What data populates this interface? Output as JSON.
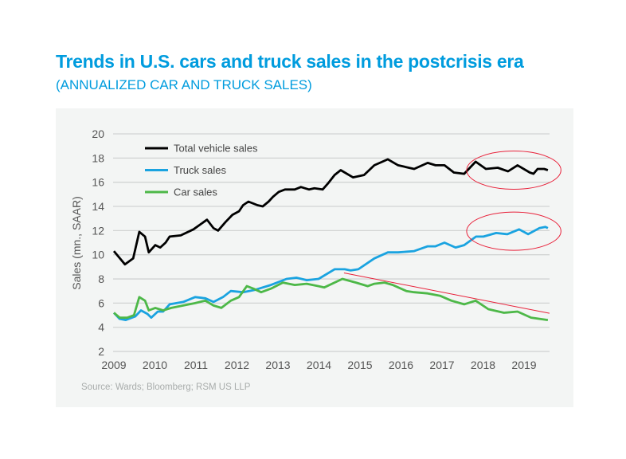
{
  "title": "Trends in U.S. cars and truck sales in the postcrisis era",
  "subtitle": "(ANNUALIZED CAR AND TRUCK SALES)",
  "source": "Source: Wards; Bloomberg; RSM US LLP",
  "chart_data": {
    "type": "line",
    "title": "Trends in U.S. cars and truck sales in the postcrisis era",
    "xlabel": "",
    "ylabel": "Sales (mn., SAAR)",
    "xlim": [
      2009,
      2019.7
    ],
    "ylim": [
      2,
      20
    ],
    "yticks": [
      "2",
      "4",
      "6",
      "8",
      "10",
      "12",
      "14",
      "16",
      "18",
      "20"
    ],
    "xticks": [
      "2009",
      "2010",
      "2011",
      "2012",
      "2013",
      "2014",
      "2015",
      "2016",
      "2017",
      "2018",
      "2019"
    ],
    "grid": "horizontal",
    "legend_position": "top-left",
    "series": [
      {
        "name": "Total vehicle sales",
        "color": "#000000",
        "points": [
          [
            2009.0,
            10.3
          ],
          [
            2009.27,
            9.2
          ],
          [
            2009.47,
            9.7
          ],
          [
            2009.62,
            11.9
          ],
          [
            2009.76,
            11.5
          ],
          [
            2009.85,
            10.2
          ],
          [
            2010.01,
            10.8
          ],
          [
            2010.13,
            10.6
          ],
          [
            2010.26,
            11.0
          ],
          [
            2010.36,
            11.5
          ],
          [
            2010.63,
            11.6
          ],
          [
            2010.94,
            12.1
          ],
          [
            2011.27,
            12.9
          ],
          [
            2011.43,
            12.2
          ],
          [
            2011.54,
            12.0
          ],
          [
            2011.72,
            12.7
          ],
          [
            2011.89,
            13.3
          ],
          [
            2012.05,
            13.6
          ],
          [
            2012.15,
            14.1
          ],
          [
            2012.28,
            14.4
          ],
          [
            2012.5,
            14.1
          ],
          [
            2012.63,
            14.0
          ],
          [
            2012.77,
            14.4
          ],
          [
            2012.88,
            14.8
          ],
          [
            2013.02,
            15.2
          ],
          [
            2013.17,
            15.4
          ],
          [
            2013.41,
            15.4
          ],
          [
            2013.56,
            15.6
          ],
          [
            2013.76,
            15.4
          ],
          [
            2013.89,
            15.5
          ],
          [
            2014.09,
            15.4
          ],
          [
            2014.22,
            15.9
          ],
          [
            2014.38,
            16.6
          ],
          [
            2014.53,
            17.0
          ],
          [
            2014.83,
            16.4
          ],
          [
            2015.1,
            16.6
          ],
          [
            2015.35,
            17.4
          ],
          [
            2015.68,
            17.9
          ],
          [
            2015.93,
            17.4
          ],
          [
            2016.32,
            17.1
          ],
          [
            2016.65,
            17.6
          ],
          [
            2016.84,
            17.4
          ],
          [
            2017.06,
            17.4
          ],
          [
            2017.29,
            16.8
          ],
          [
            2017.54,
            16.7
          ],
          [
            2017.82,
            17.7
          ],
          [
            2018.07,
            17.1
          ],
          [
            2018.36,
            17.2
          ],
          [
            2018.61,
            16.9
          ],
          [
            2018.84,
            17.4
          ],
          [
            2019.14,
            16.8
          ],
          [
            2019.23,
            16.7
          ],
          [
            2019.33,
            17.1
          ],
          [
            2019.49,
            17.1
          ],
          [
            2019.58,
            17.0
          ]
        ]
      },
      {
        "name": "Truck sales",
        "color": "#1aa3e0",
        "points": [
          [
            2009.0,
            5.2
          ],
          [
            2009.14,
            4.7
          ],
          [
            2009.29,
            4.6
          ],
          [
            2009.52,
            4.9
          ],
          [
            2009.66,
            5.4
          ],
          [
            2009.82,
            5.1
          ],
          [
            2009.91,
            4.8
          ],
          [
            2010.07,
            5.3
          ],
          [
            2010.2,
            5.3
          ],
          [
            2010.36,
            5.9
          ],
          [
            2010.69,
            6.1
          ],
          [
            2010.98,
            6.5
          ],
          [
            2011.23,
            6.4
          ],
          [
            2011.43,
            6.1
          ],
          [
            2011.66,
            6.5
          ],
          [
            2011.85,
            7.0
          ],
          [
            2012.15,
            6.9
          ],
          [
            2012.44,
            7.1
          ],
          [
            2012.83,
            7.5
          ],
          [
            2013.21,
            8.0
          ],
          [
            2013.45,
            8.1
          ],
          [
            2013.7,
            7.9
          ],
          [
            2013.99,
            8.0
          ],
          [
            2014.38,
            8.8
          ],
          [
            2014.63,
            8.8
          ],
          [
            2014.77,
            8.7
          ],
          [
            2014.96,
            8.8
          ],
          [
            2015.35,
            9.7
          ],
          [
            2015.68,
            10.2
          ],
          [
            2015.93,
            10.2
          ],
          [
            2016.32,
            10.3
          ],
          [
            2016.65,
            10.7
          ],
          [
            2016.84,
            10.7
          ],
          [
            2017.06,
            11.0
          ],
          [
            2017.33,
            10.6
          ],
          [
            2017.54,
            10.8
          ],
          [
            2017.83,
            11.5
          ],
          [
            2018.01,
            11.5
          ],
          [
            2018.32,
            11.8
          ],
          [
            2018.59,
            11.7
          ],
          [
            2018.88,
            12.1
          ],
          [
            2019.1,
            11.7
          ],
          [
            2019.37,
            12.2
          ],
          [
            2019.52,
            12.3
          ],
          [
            2019.58,
            12.2
          ]
        ]
      },
      {
        "name": "Car sales",
        "color": "#4db848",
        "points": [
          [
            2009.0,
            5.2
          ],
          [
            2009.14,
            4.8
          ],
          [
            2009.33,
            4.8
          ],
          [
            2009.49,
            5.0
          ],
          [
            2009.62,
            6.5
          ],
          [
            2009.76,
            6.2
          ],
          [
            2009.85,
            5.4
          ],
          [
            2010.01,
            5.6
          ],
          [
            2010.2,
            5.4
          ],
          [
            2010.4,
            5.6
          ],
          [
            2010.69,
            5.8
          ],
          [
            2010.98,
            6.0
          ],
          [
            2011.23,
            6.2
          ],
          [
            2011.43,
            5.8
          ],
          [
            2011.62,
            5.6
          ],
          [
            2011.85,
            6.2
          ],
          [
            2012.05,
            6.5
          ],
          [
            2012.24,
            7.4
          ],
          [
            2012.4,
            7.2
          ],
          [
            2012.59,
            6.9
          ],
          [
            2012.83,
            7.2
          ],
          [
            2013.12,
            7.7
          ],
          [
            2013.41,
            7.5
          ],
          [
            2013.7,
            7.6
          ],
          [
            2013.99,
            7.4
          ],
          [
            2014.13,
            7.3
          ],
          [
            2014.57,
            8.0
          ],
          [
            2014.9,
            7.7
          ],
          [
            2015.19,
            7.4
          ],
          [
            2015.35,
            7.6
          ],
          [
            2015.6,
            7.7
          ],
          [
            2015.8,
            7.5
          ],
          [
            2016.13,
            7.0
          ],
          [
            2016.32,
            6.9
          ],
          [
            2016.65,
            6.8
          ],
          [
            2016.96,
            6.6
          ],
          [
            2017.23,
            6.2
          ],
          [
            2017.54,
            5.9
          ],
          [
            2017.82,
            6.2
          ],
          [
            2018.13,
            5.5
          ],
          [
            2018.51,
            5.2
          ],
          [
            2018.84,
            5.3
          ],
          [
            2019.17,
            4.8
          ],
          [
            2019.58,
            4.6
          ]
        ]
      }
    ],
    "annotations": {
      "color": "#e8213a",
      "trend_line": {
        "from": [
          2014.61,
          8.5
        ],
        "to": [
          2019.62,
          5.16
        ]
      },
      "ellipses": [
        {
          "center": [
            2018.75,
            17.0
          ],
          "half_width_years": 1.15,
          "half_height_units": 1.58
        },
        {
          "center": [
            2018.75,
            11.95
          ],
          "half_width_years": 1.15,
          "half_height_units": 1.58
        }
      ]
    }
  }
}
